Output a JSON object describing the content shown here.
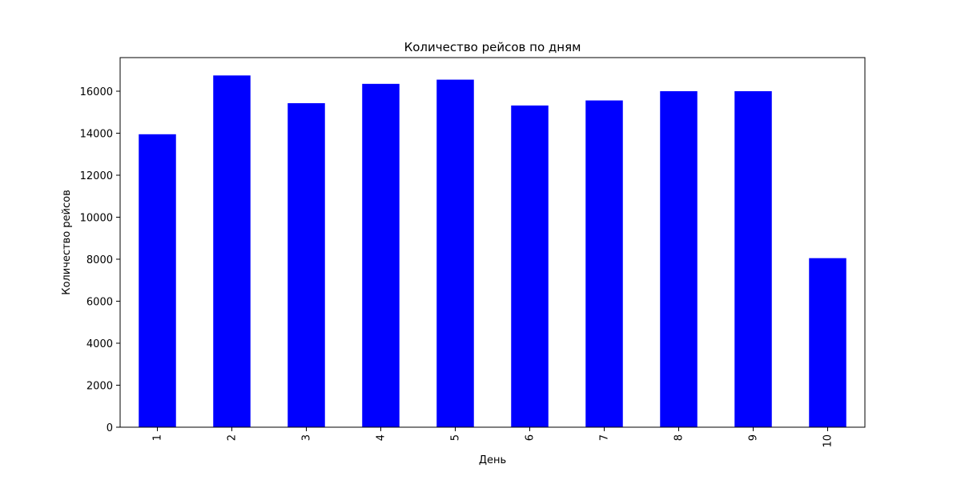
{
  "chart_data": {
    "type": "bar",
    "title": "Количество рейсов по дням",
    "xlabel": "День",
    "ylabel": "Количество рейсов",
    "categories": [
      "1",
      "2",
      "3",
      "4",
      "5",
      "6",
      "7",
      "8",
      "9",
      "10"
    ],
    "values": [
      13950,
      16750,
      15430,
      16350,
      16550,
      15320,
      15560,
      16000,
      16000,
      8050
    ],
    "ylim": [
      0,
      17600
    ],
    "yticks": [
      0,
      2000,
      4000,
      6000,
      8000,
      10000,
      12000,
      14000,
      16000
    ],
    "ytick_labels": [
      "0",
      "2000",
      "4000",
      "6000",
      "8000",
      "10000",
      "12000",
      "14000",
      "16000"
    ],
    "bar_color": "#0000ff",
    "grid": false,
    "legend": "none"
  }
}
